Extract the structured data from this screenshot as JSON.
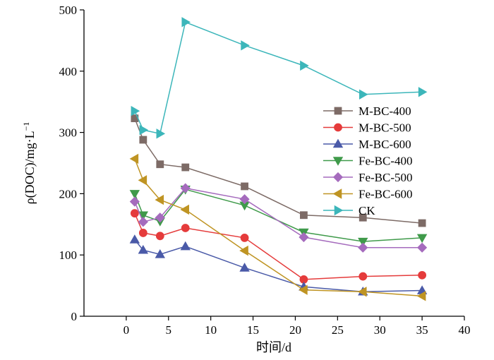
{
  "chart_data": {
    "type": "line",
    "xlabel": "时间/d",
    "ylabel": "ρ(DOC)/mg·L",
    "ylabel_sup": "−1",
    "xlim": [
      -5,
      40
    ],
    "ylim": [
      0,
      500
    ],
    "xticks": [
      0,
      5,
      10,
      15,
      20,
      25,
      30,
      35,
      40
    ],
    "yticks": [
      0,
      100,
      200,
      300,
      400,
      500
    ],
    "legend_position": "right",
    "grid": false,
    "series": [
      {
        "name": "M-BC-400",
        "color": "#7d6b66",
        "marker": "square",
        "x": [
          1,
          2,
          4,
          7,
          14,
          21,
          28,
          35
        ],
        "y": [
          323,
          288,
          248,
          243,
          212,
          165,
          161,
          152
        ]
      },
      {
        "name": "M-BC-500",
        "color": "#e53b3b",
        "marker": "circle",
        "x": [
          1,
          2,
          4,
          7,
          14,
          21,
          28,
          35
        ],
        "y": [
          168,
          136,
          131,
          144,
          128,
          60,
          65,
          67
        ]
      },
      {
        "name": "M-BC-600",
        "color": "#4a5aa8",
        "marker": "triangle-up",
        "x": [
          1,
          2,
          4,
          7,
          14,
          21,
          28,
          35
        ],
        "y": [
          125,
          108,
          101,
          114,
          79,
          48,
          40,
          42
        ]
      },
      {
        "name": "Fe-BC-400",
        "color": "#3f9a4a",
        "marker": "triangle-down",
        "x": [
          1,
          2,
          4,
          7,
          14,
          21,
          28,
          35
        ],
        "y": [
          200,
          165,
          155,
          207,
          181,
          137,
          122,
          128
        ]
      },
      {
        "name": "Fe-BC-500",
        "color": "#a56bbd",
        "marker": "diamond",
        "x": [
          1,
          2,
          4,
          7,
          14,
          21,
          28,
          35
        ],
        "y": [
          187,
          154,
          161,
          209,
          191,
          129,
          112,
          112
        ]
      },
      {
        "name": "Fe-BC-600",
        "color": "#bf9423",
        "marker": "triangle-left",
        "x": [
          1,
          2,
          4,
          7,
          14,
          21,
          28,
          35
        ],
        "y": [
          257,
          222,
          190,
          174,
          107,
          43,
          40,
          33
        ]
      },
      {
        "name": "CK",
        "color": "#3cb6ba",
        "marker": "triangle-right",
        "x": [
          1,
          2,
          4,
          7,
          14,
          21,
          28,
          35
        ],
        "y": [
          335,
          304,
          298,
          480,
          442,
          409,
          362,
          366
        ]
      }
    ]
  }
}
